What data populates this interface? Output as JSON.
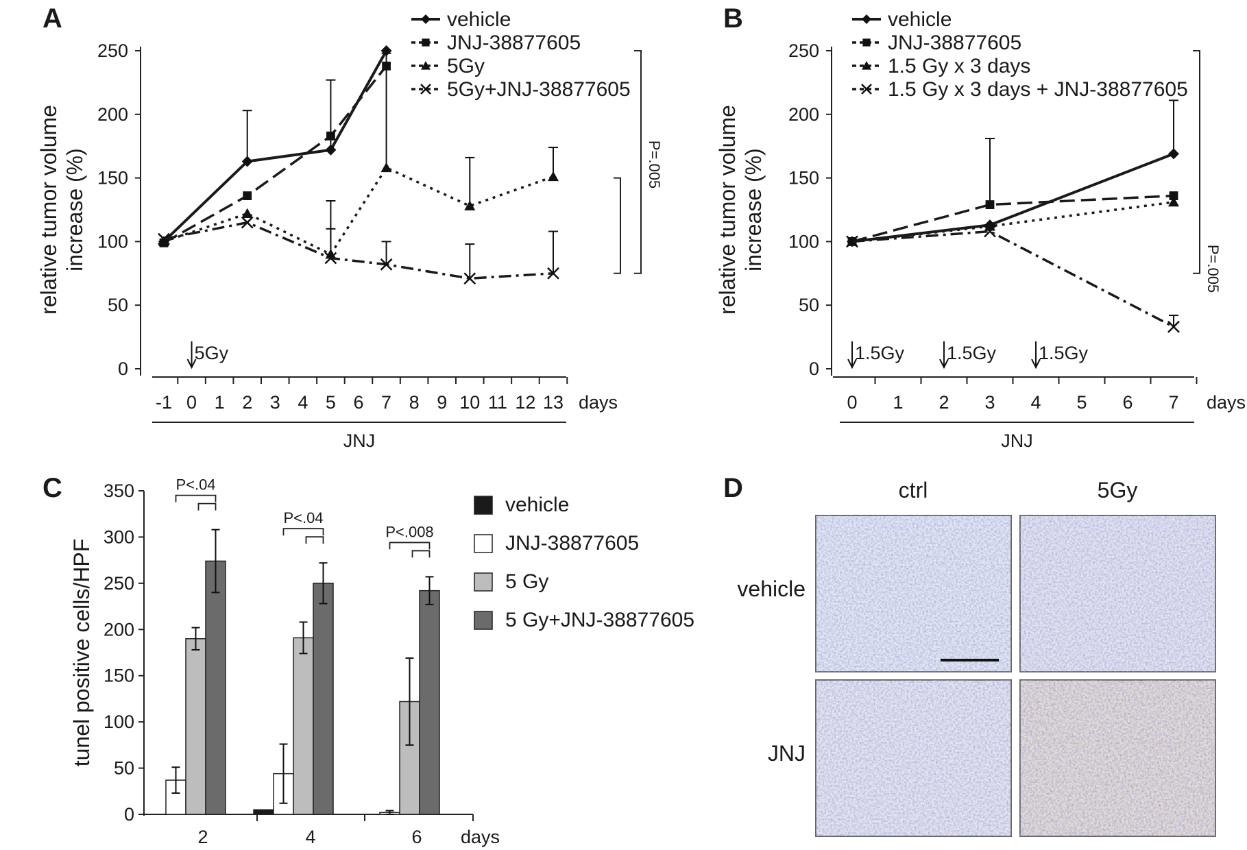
{
  "panels": {
    "A": "A",
    "B": "B",
    "C": "C",
    "D": "D"
  },
  "colors": {
    "vehicle": "#1a1a1a",
    "jnj": "#ffffff",
    "radiation": "#bdbdbd",
    "combo": "#6b6b6b",
    "tissue_bg": "#dfe3ee",
    "tissue_blue": "#5a6fb8",
    "tissue_brown": "#8a4a2a"
  },
  "chart_data": [
    {
      "panel": "A",
      "type": "line",
      "ylabel_line1": "relative tumor volume",
      "ylabel_line2": "increase (%)",
      "ylim": [
        0,
        250
      ],
      "yticks": [
        0,
        50,
        100,
        150,
        200,
        250
      ],
      "xticks": [
        -1,
        0,
        1,
        2,
        3,
        4,
        5,
        6,
        7,
        8,
        9,
        10,
        11,
        12,
        13
      ],
      "x_unit": "days",
      "treatment_bar_label": "JNJ",
      "markers": [
        {
          "x": 0,
          "label": "5Gy"
        }
      ],
      "significance": "P=.005",
      "legend": [
        "vehicle",
        "JNJ-38877605",
        "5Gy",
        "5Gy+JNJ-38877605"
      ],
      "series": [
        {
          "name": "vehicle",
          "marker": "diamond",
          "dash": "solid",
          "x": [
            -1,
            2,
            5,
            7
          ],
          "y": [
            100,
            163,
            172,
            250
          ],
          "err": [
            0,
            40,
            55,
            0
          ]
        },
        {
          "name": "JNJ-38877605",
          "marker": "square",
          "dash": "dashed",
          "x": [
            -1,
            2,
            5,
            7
          ],
          "y": [
            99,
            136,
            183,
            238
          ],
          "err": [
            0,
            0,
            0,
            0
          ]
        },
        {
          "name": "5Gy",
          "marker": "triangle",
          "dash": "dotted",
          "x": [
            -1,
            2,
            5,
            7,
            10,
            13
          ],
          "y": [
            100,
            122,
            90,
            158,
            128,
            151
          ],
          "err": [
            0,
            0,
            42,
            90,
            38,
            23
          ]
        },
        {
          "name": "5Gy+JNJ-38877605",
          "marker": "x",
          "dash": "dashdot",
          "x": [
            -1,
            2,
            5,
            7,
            10,
            13
          ],
          "y": [
            102,
            115,
            87,
            82,
            71,
            75
          ],
          "err": [
            0,
            0,
            23,
            18,
            27,
            33
          ]
        }
      ]
    },
    {
      "panel": "B",
      "type": "line",
      "ylabel_line1": "relative tumor volume",
      "ylabel_line2": "increase (%)",
      "ylim": [
        0,
        250
      ],
      "yticks": [
        0,
        50,
        100,
        150,
        200,
        250
      ],
      "xticks": [
        0,
        1,
        2,
        3,
        4,
        5,
        6,
        7
      ],
      "x_unit": "days",
      "treatment_bar_label": "JNJ",
      "markers": [
        {
          "x": 0,
          "label": "1.5Gy"
        },
        {
          "x": 2,
          "label": "1.5Gy"
        },
        {
          "x": 4,
          "label": "1.5Gy"
        }
      ],
      "significance": "P=.005",
      "legend": [
        "vehicle",
        "JNJ-38877605",
        "1.5 Gy x 3 days",
        "1.5 Gy x 3 days + JNJ-38877605"
      ],
      "series": [
        {
          "name": "vehicle",
          "marker": "diamond",
          "dash": "solid",
          "x": [
            0,
            3,
            7
          ],
          "y": [
            100,
            113,
            169
          ],
          "err": [
            0,
            0,
            42
          ]
        },
        {
          "name": "JNJ-38877605",
          "marker": "square",
          "dash": "dashed",
          "x": [
            0,
            3,
            7
          ],
          "y": [
            100,
            129,
            136
          ],
          "err": [
            0,
            52,
            0
          ]
        },
        {
          "name": "1.5 Gy x 3 days",
          "marker": "triangle",
          "dash": "dotted",
          "x": [
            0,
            3,
            7
          ],
          "y": [
            100,
            112,
            131
          ],
          "err": [
            0,
            0,
            0
          ]
        },
        {
          "name": "1.5 Gy x 3 days + JNJ-38877605",
          "marker": "x",
          "dash": "dashdot",
          "x": [
            0,
            3,
            7
          ],
          "y": [
            100,
            108,
            33
          ],
          "err": [
            0,
            0,
            9
          ]
        }
      ]
    },
    {
      "panel": "C",
      "type": "bar",
      "ylabel": "tunel positive cells/HPF",
      "ylim": [
        0,
        350
      ],
      "yticks": [
        0,
        50,
        100,
        150,
        200,
        250,
        300,
        350
      ],
      "categories": [
        "2",
        "4",
        "6"
      ],
      "x_unit": "days",
      "significance": [
        "P<.04",
        "P<.04",
        "P<.008"
      ],
      "series": [
        {
          "name": "vehicle",
          "values": [
            0,
            5,
            0
          ],
          "err": [
            0,
            0,
            0
          ]
        },
        {
          "name": "JNJ-38877605",
          "values": [
            37,
            44,
            2
          ],
          "err": [
            14,
            32,
            2
          ]
        },
        {
          "name": "5 Gy",
          "values": [
            190,
            191,
            122
          ],
          "err": [
            12,
            17,
            47
          ]
        },
        {
          "name": "5 Gy+JNJ-38877605",
          "values": [
            274,
            250,
            242
          ],
          "err": [
            34,
            22,
            15
          ]
        }
      ]
    }
  ],
  "panel_d": {
    "columns": [
      "ctrl",
      "5Gy"
    ],
    "rows": [
      "vehicle",
      "JNJ"
    ]
  }
}
